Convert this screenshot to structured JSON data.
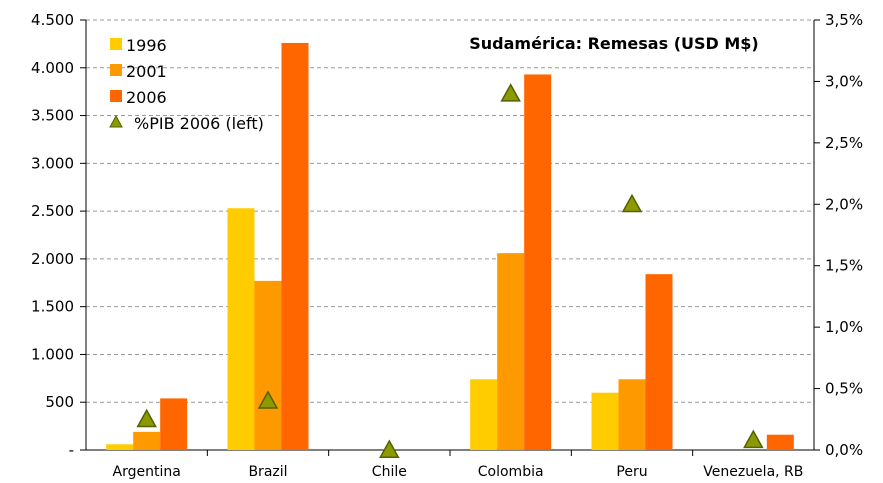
{
  "chart_data": {
    "type": "bar",
    "title": "Sudamérica: Remesas (USD M$)",
    "categories": [
      "Argentina",
      "Brazil",
      "Chile",
      "Colombia",
      "Peru",
      "Venezuela, RB"
    ],
    "series": [
      {
        "name": "1996",
        "values": [
          60,
          2530,
          0,
          740,
          600,
          0
        ],
        "color": "#FFCC00"
      },
      {
        "name": "2001",
        "values": [
          190,
          1770,
          0,
          2060,
          740,
          0
        ],
        "color": "#FF9900"
      },
      {
        "name": "2006",
        "values": [
          540,
          4260,
          0,
          3930,
          1840,
          160
        ],
        "color": "#FF6600"
      }
    ],
    "marker_series": {
      "name": "%PIB 2006 (left)",
      "values": [
        0.25,
        0.4,
        0.0,
        2.9,
        2.0,
        0.08
      ],
      "color": "#8B9A00"
    },
    "y_left": {
      "min": 0,
      "max": 4500,
      "ticks": [
        "-",
        "500",
        "1.000",
        "1.500",
        "2.000",
        "2.500",
        "3.000",
        "3.500",
        "4.000",
        "4.500"
      ]
    },
    "y_right": {
      "min": 0,
      "max": 3.5,
      "ticks": [
        "0,0%",
        "0,5%",
        "1,0%",
        "1,5%",
        "2,0%",
        "2,5%",
        "3,0%",
        "3,5%"
      ]
    },
    "legend_position": "top-left",
    "grid": true
  }
}
